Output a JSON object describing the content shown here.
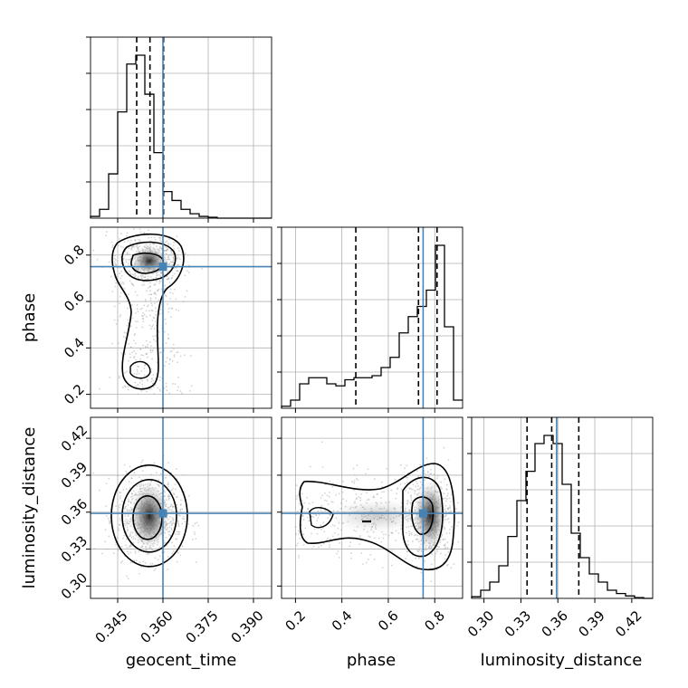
{
  "chart_data": {
    "type": "corner",
    "parameters": [
      {
        "name": "geocent_time",
        "label": "geocent_time",
        "range": [
          0.336,
          0.396
        ],
        "ticks": [
          0.345,
          0.36,
          0.375,
          0.39
        ],
        "tick_labels": [
          "0.345",
          "0.360",
          "0.375",
          "0.390"
        ],
        "truth": 0.36,
        "quantiles": [
          0.3513,
          0.3557,
          0.3602
        ]
      },
      {
        "name": "phase",
        "label": "phase",
        "range": [
          0.14,
          0.92
        ],
        "ticks": [
          0.2,
          0.4,
          0.6,
          0.8
        ],
        "tick_labels": [
          "0.2",
          "0.4",
          "0.6",
          "0.8"
        ],
        "truth": 0.75,
        "quantiles": [
          0.46,
          0.73,
          0.81
        ]
      },
      {
        "name": "luminosity_distance",
        "label": "luminosity_distance",
        "range": [
          0.29,
          0.437
        ],
        "ticks": [
          0.3,
          0.33,
          0.36,
          0.39,
          0.42
        ],
        "tick_labels": [
          "0.30",
          "0.33",
          "0.36",
          "0.39",
          "0.42"
        ],
        "truth": 0.359,
        "quantiles": [
          0.335,
          0.355,
          0.377
        ]
      }
    ],
    "hist_bins": 20,
    "histograms": {
      "geocent_time": [
        0.01,
        0.05,
        0.25,
        0.6,
        0.87,
        0.92,
        0.7,
        0.37,
        0.15,
        0.1,
        0.05,
        0.025,
        0.01,
        0.005,
        0,
        0,
        0,
        0,
        0,
        0
      ],
      "phase": [
        0.01,
        0.04,
        0.12,
        0.15,
        0.15,
        0.12,
        0.11,
        0.14,
        0.15,
        0.15,
        0.16,
        0.2,
        0.25,
        0.37,
        0.45,
        0.5,
        0.58,
        0.8,
        0.4,
        0.04
      ],
      "luminosity_distance": [
        0.01,
        0.05,
        0.1,
        0.2,
        0.38,
        0.6,
        0.78,
        0.95,
        1.0,
        0.95,
        0.7,
        0.4,
        0.25,
        0.15,
        0.1,
        0.05,
        0.03,
        0.015,
        0.005,
        0
      ]
    },
    "truth_color": "#4682b4",
    "quantile_style": "dashed",
    "grid": true,
    "contour_color": "#000000"
  }
}
